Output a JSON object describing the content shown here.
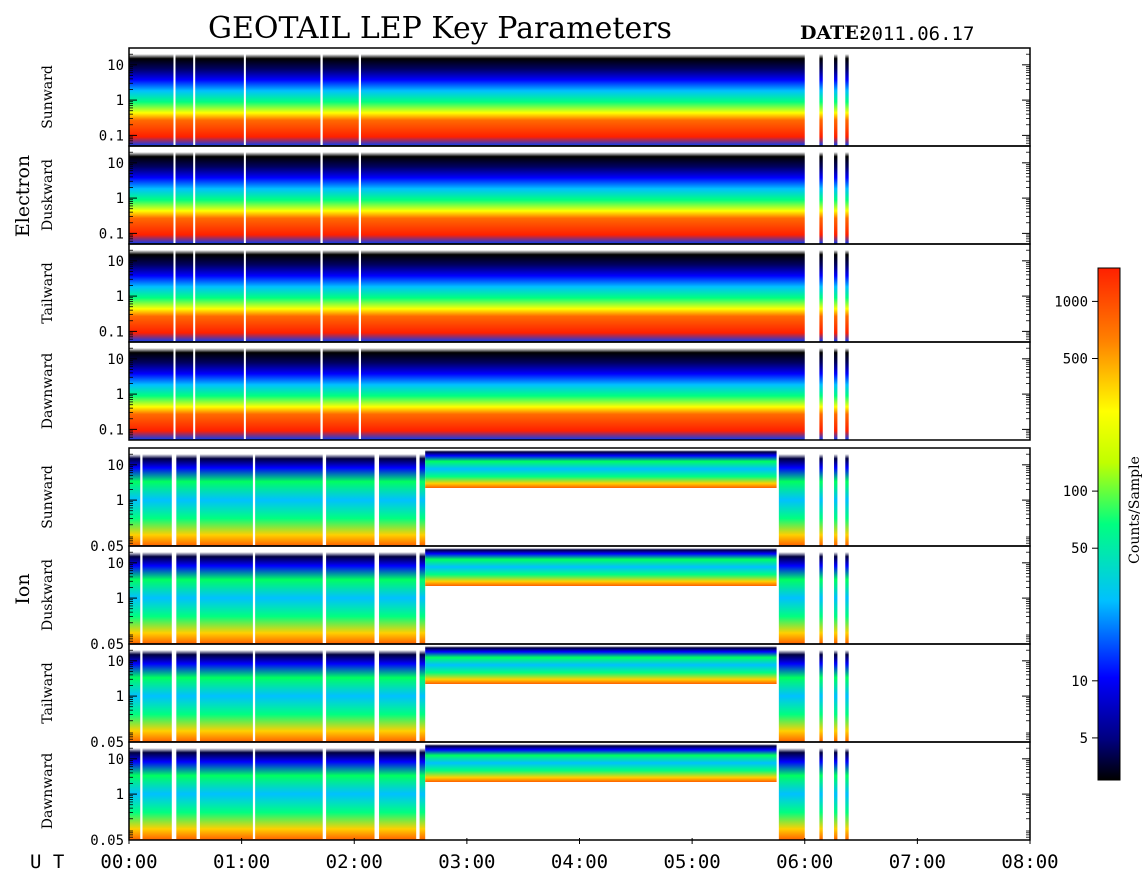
{
  "chart_data": {
    "type": "heatmap",
    "title": "GEOTAIL LEP Key Parameters",
    "date_label": "DATE:",
    "date_value": "2011.06.17",
    "x_axis_label": "U T",
    "x_ticks": [
      "00:00",
      "01:00",
      "02:00",
      "03:00",
      "04:00",
      "05:00",
      "06:00",
      "07:00",
      "08:00"
    ],
    "x_range_hours": [
      0,
      8
    ],
    "groups": [
      {
        "name": "Electron",
        "y_ticks": [
          "10",
          "1",
          "0.1"
        ],
        "y_tick_values": [
          10,
          1,
          0.1
        ],
        "y_log_range": [
          0.05,
          30
        ],
        "panels": [
          "Sunward",
          "Duskward",
          "Tailward",
          "Dawnward"
        ],
        "coverage_hours": [
          [
            0.0,
            6.0
          ],
          [
            6.13,
            6.16
          ],
          [
            6.26,
            6.29
          ],
          [
            6.36,
            6.39
          ]
        ],
        "gap_hours": [
          [
            0.395,
            0.41
          ],
          [
            0.57,
            0.585
          ],
          [
            1.02,
            1.03
          ],
          [
            1.7,
            1.72
          ],
          [
            2.04,
            2.06
          ]
        ]
      },
      {
        "name": "Ion",
        "y_ticks": [
          "10",
          "1",
          "0.05"
        ],
        "y_tick_values": [
          10,
          1,
          0.05
        ],
        "y_log_range": [
          0.05,
          30
        ],
        "panels": [
          "Sunward",
          "Duskward",
          "Tailward",
          "Dawnward"
        ],
        "coverage_hours": [
          [
            0.0,
            2.63
          ],
          [
            2.63,
            5.75
          ],
          [
            5.77,
            6.0
          ],
          [
            6.13,
            6.16
          ],
          [
            6.26,
            6.29
          ],
          [
            6.36,
            6.39
          ]
        ],
        "gap_hours": [
          [
            0.1,
            0.12
          ],
          [
            0.38,
            0.42
          ],
          [
            0.6,
            0.63
          ],
          [
            1.1,
            1.12
          ],
          [
            1.72,
            1.75
          ],
          [
            2.18,
            2.22
          ],
          [
            2.55,
            2.58
          ]
        ]
      }
    ],
    "colorbar": {
      "label": "Counts/Sample",
      "scale": "log",
      "range": [
        3,
        1500
      ],
      "ticks": [
        "1000",
        "500",
        "100",
        "50",
        "10",
        "5"
      ],
      "tick_values": [
        1000,
        500,
        100,
        50,
        10,
        5
      ],
      "colors": [
        "#000000",
        "#000080",
        "#0000ff",
        "#00c0ff",
        "#00ff80",
        "#c0ff00",
        "#ffff00",
        "#ff8000",
        "#ff2000"
      ]
    }
  }
}
